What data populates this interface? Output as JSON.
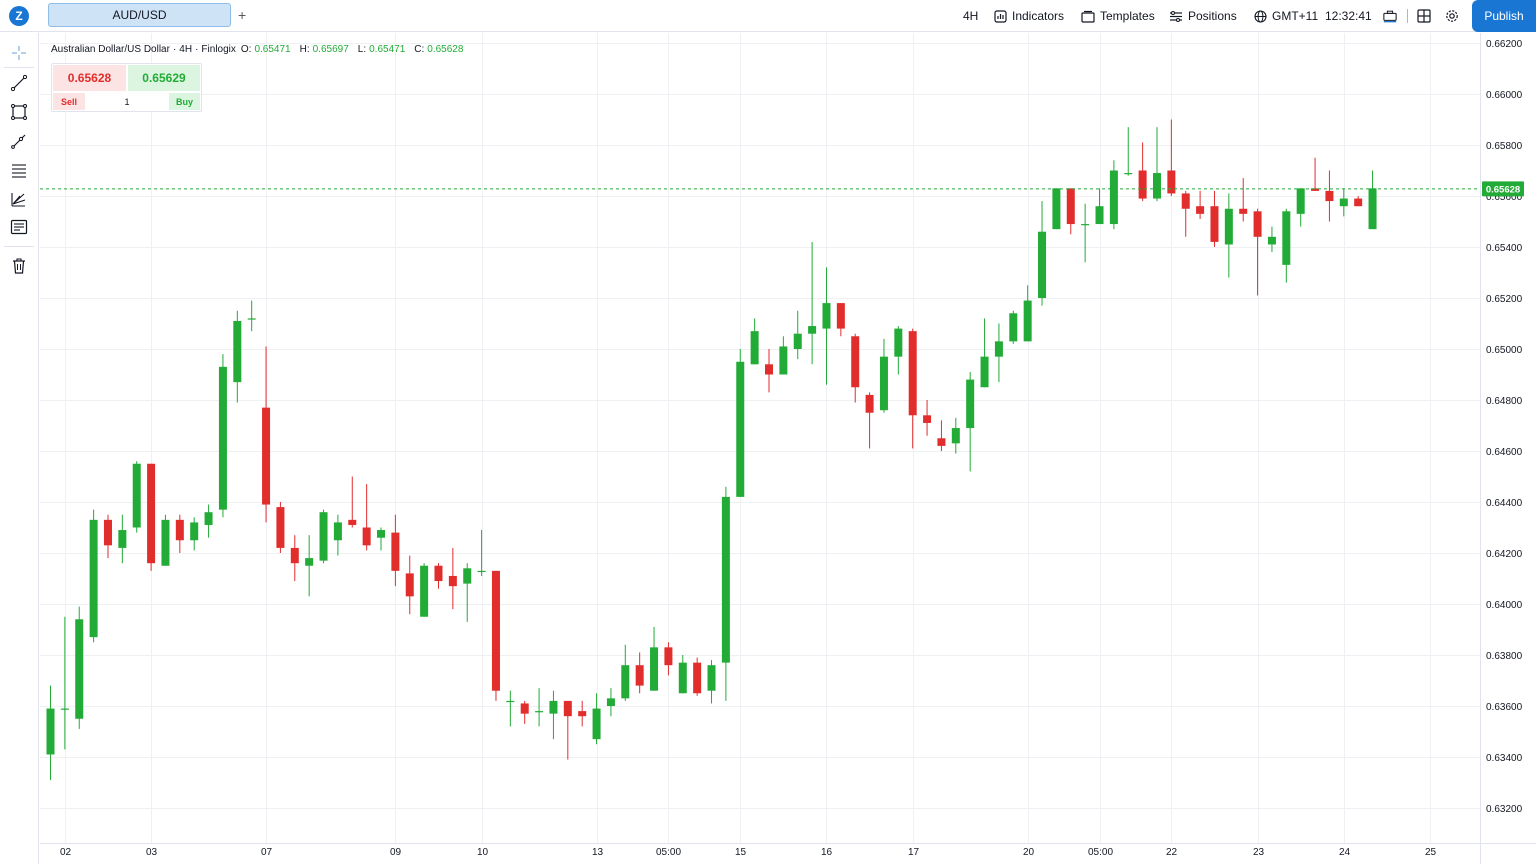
{
  "app": {
    "logo_icon": "z-logo-icon",
    "logo_text": "Z"
  },
  "tabs": [
    {
      "label": "AUD/USD",
      "active": true
    }
  ],
  "add_tab_label": "+",
  "toolbar": {
    "timeframe": "4H",
    "indicators_label": "Indicators",
    "templates_label": "Templates",
    "positions_label": "Positions",
    "timezone": "GMT+11",
    "clock": "12:32:41",
    "publish_label": "Publish"
  },
  "left_tools": [
    "crosshair-icon",
    "trend-line-icon",
    "rectangle-icon",
    "brush-icon",
    "fib-retracement-icon",
    "pitchfork-icon",
    "text-note-icon",
    "trash-icon"
  ],
  "legend": {
    "symbol_name": "Australian Dollar/US Dollar",
    "interval": "4H",
    "source": "Finlogix",
    "o_label": "O:",
    "o_value": "0.65471",
    "h_label": "H:",
    "h_value": "0.65697",
    "l_label": "L:",
    "l_value": "0.65471",
    "c_label": "C:",
    "c_value": "0.65628"
  },
  "trade_panel": {
    "sell_price": "0.65628",
    "buy_price": "0.65629",
    "sell_label": "Sell",
    "buy_label": "Buy",
    "quantity": "1"
  },
  "colors": {
    "up": "#22ab37",
    "down": "#e22d2d",
    "grid": "#eef0f3",
    "accent": "#1976d2"
  },
  "chart_data": {
    "type": "candlestick",
    "symbol": "AUD/USD",
    "interval": "4H",
    "ylim": [
      0.6312,
      0.6625
    ],
    "y_ticks": [
      "0.66200",
      "0.66000",
      "0.65800",
      "0.65600",
      "0.65400",
      "0.65200",
      "0.65000",
      "0.64800",
      "0.64600",
      "0.64400",
      "0.64200",
      "0.64000",
      "0.63800",
      "0.63600",
      "0.63400",
      "0.63200"
    ],
    "x_tick_labels": [
      {
        "label": "02",
        "index": 1
      },
      {
        "label": "03",
        "index": 7
      },
      {
        "label": "07",
        "index": 15
      },
      {
        "label": "09",
        "index": 24
      },
      {
        "label": "10",
        "index": 30
      },
      {
        "label": "13",
        "index": 38
      },
      {
        "label": "05:00",
        "index": 43
      },
      {
        "label": "15",
        "index": 48
      },
      {
        "label": "16",
        "index": 54
      },
      {
        "label": "17",
        "index": 60
      },
      {
        "label": "20",
        "index": 68
      },
      {
        "label": "05:00",
        "index": 73
      },
      {
        "label": "22",
        "index": 78
      },
      {
        "label": "23",
        "index": 84
      },
      {
        "label": "24",
        "index": 90
      },
      {
        "label": "25",
        "index": 96
      }
    ],
    "last_price": "0.65628",
    "last_value": 0.65628,
    "grid": true,
    "candles": [
      {
        "o": 0.6341,
        "h": 0.6368,
        "l": 0.6331,
        "c": 0.6359
      },
      {
        "o": 0.6359,
        "h": 0.6395,
        "l": 0.6343,
        "c": 0.6359
      },
      {
        "o": 0.6355,
        "h": 0.6399,
        "l": 0.6351,
        "c": 0.6394
      },
      {
        "o": 0.6387,
        "h": 0.6437,
        "l": 0.6385,
        "c": 0.6433
      },
      {
        "o": 0.6433,
        "h": 0.6435,
        "l": 0.6418,
        "c": 0.6423
      },
      {
        "o": 0.6422,
        "h": 0.6435,
        "l": 0.6416,
        "c": 0.6429
      },
      {
        "o": 0.643,
        "h": 0.6456,
        "l": 0.6428,
        "c": 0.6455
      },
      {
        "o": 0.6455,
        "h": 0.6455,
        "l": 0.6413,
        "c": 0.6416
      },
      {
        "o": 0.6415,
        "h": 0.6435,
        "l": 0.6415,
        "c": 0.6433
      },
      {
        "o": 0.6433,
        "h": 0.6435,
        "l": 0.642,
        "c": 0.6425
      },
      {
        "o": 0.6425,
        "h": 0.6434,
        "l": 0.6421,
        "c": 0.6432
      },
      {
        "o": 0.6431,
        "h": 0.6439,
        "l": 0.6426,
        "c": 0.6436
      },
      {
        "o": 0.6437,
        "h": 0.6498,
        "l": 0.6434,
        "c": 0.6493
      },
      {
        "o": 0.6487,
        "h": 0.6515,
        "l": 0.6479,
        "c": 0.6511
      },
      {
        "o": 0.6512,
        "h": 0.6519,
        "l": 0.6507,
        "c": 0.6512
      },
      {
        "o": 0.6477,
        "h": 0.6501,
        "l": 0.6432,
        "c": 0.6439
      },
      {
        "o": 0.6438,
        "h": 0.644,
        "l": 0.642,
        "c": 0.6422
      },
      {
        "o": 0.6422,
        "h": 0.6427,
        "l": 0.6409,
        "c": 0.6416
      },
      {
        "o": 0.6415,
        "h": 0.6427,
        "l": 0.6403,
        "c": 0.6418
      },
      {
        "o": 0.6417,
        "h": 0.6437,
        "l": 0.6416,
        "c": 0.6436
      },
      {
        "o": 0.6425,
        "h": 0.6435,
        "l": 0.6419,
        "c": 0.6432
      },
      {
        "o": 0.6433,
        "h": 0.645,
        "l": 0.643,
        "c": 0.6431
      },
      {
        "o": 0.643,
        "h": 0.6447,
        "l": 0.6421,
        "c": 0.6423
      },
      {
        "o": 0.6426,
        "h": 0.643,
        "l": 0.6421,
        "c": 0.6429
      },
      {
        "o": 0.6428,
        "h": 0.6435,
        "l": 0.6407,
        "c": 0.6413
      },
      {
        "o": 0.6412,
        "h": 0.6419,
        "l": 0.6396,
        "c": 0.6403
      },
      {
        "o": 0.6395,
        "h": 0.6416,
        "l": 0.6395,
        "c": 0.6415
      },
      {
        "o": 0.6415,
        "h": 0.6416,
        "l": 0.6406,
        "c": 0.6409
      },
      {
        "o": 0.6411,
        "h": 0.6422,
        "l": 0.6398,
        "c": 0.6407
      },
      {
        "o": 0.6408,
        "h": 0.6416,
        "l": 0.6393,
        "c": 0.6414
      },
      {
        "o": 0.6413,
        "h": 0.6429,
        "l": 0.6411,
        "c": 0.6413
      },
      {
        "o": 0.6413,
        "h": 0.6413,
        "l": 0.6362,
        "c": 0.6366
      },
      {
        "o": 0.6362,
        "h": 0.6366,
        "l": 0.6352,
        "c": 0.6362
      },
      {
        "o": 0.6361,
        "h": 0.6362,
        "l": 0.6353,
        "c": 0.6357
      },
      {
        "o": 0.6358,
        "h": 0.6367,
        "l": 0.6352,
        "c": 0.6358
      },
      {
        "o": 0.6357,
        "h": 0.6366,
        "l": 0.6347,
        "c": 0.6362
      },
      {
        "o": 0.6362,
        "h": 0.6362,
        "l": 0.6339,
        "c": 0.6356
      },
      {
        "o": 0.6358,
        "h": 0.6362,
        "l": 0.6352,
        "c": 0.6356
      },
      {
        "o": 0.6347,
        "h": 0.6365,
        "l": 0.6345,
        "c": 0.6359
      },
      {
        "o": 0.636,
        "h": 0.6367,
        "l": 0.6356,
        "c": 0.6363
      },
      {
        "o": 0.6363,
        "h": 0.6384,
        "l": 0.6362,
        "c": 0.6376
      },
      {
        "o": 0.6376,
        "h": 0.6381,
        "l": 0.6365,
        "c": 0.6368
      },
      {
        "o": 0.6366,
        "h": 0.6391,
        "l": 0.6366,
        "c": 0.6383
      },
      {
        "o": 0.6383,
        "h": 0.6385,
        "l": 0.6372,
        "c": 0.6376
      },
      {
        "o": 0.6365,
        "h": 0.638,
        "l": 0.6365,
        "c": 0.6377
      },
      {
        "o": 0.6377,
        "h": 0.6379,
        "l": 0.6364,
        "c": 0.6365
      },
      {
        "o": 0.6366,
        "h": 0.6378,
        "l": 0.6361,
        "c": 0.6376
      },
      {
        "o": 0.6377,
        "h": 0.6446,
        "l": 0.6362,
        "c": 0.6442
      },
      {
        "o": 0.6442,
        "h": 0.65,
        "l": 0.6442,
        "c": 0.6495
      },
      {
        "o": 0.6494,
        "h": 0.6512,
        "l": 0.6494,
        "c": 0.6507
      },
      {
        "o": 0.6494,
        "h": 0.65,
        "l": 0.6483,
        "c": 0.649
      },
      {
        "o": 0.649,
        "h": 0.6505,
        "l": 0.649,
        "c": 0.6501
      },
      {
        "o": 0.65,
        "h": 0.6515,
        "l": 0.6496,
        "c": 0.6506
      },
      {
        "o": 0.6506,
        "h": 0.6542,
        "l": 0.6494,
        "c": 0.6509
      },
      {
        "o": 0.6508,
        "h": 0.6532,
        "l": 0.6486,
        "c": 0.6518
      },
      {
        "o": 0.6518,
        "h": 0.6518,
        "l": 0.6505,
        "c": 0.6508
      },
      {
        "o": 0.6505,
        "h": 0.6506,
        "l": 0.6479,
        "c": 0.6485
      },
      {
        "o": 0.6482,
        "h": 0.6483,
        "l": 0.6461,
        "c": 0.6475
      },
      {
        "o": 0.6476,
        "h": 0.6504,
        "l": 0.6475,
        "c": 0.6497
      },
      {
        "o": 0.6497,
        "h": 0.6509,
        "l": 0.649,
        "c": 0.6508
      },
      {
        "o": 0.6507,
        "h": 0.6508,
        "l": 0.6461,
        "c": 0.6474
      },
      {
        "o": 0.6474,
        "h": 0.648,
        "l": 0.6466,
        "c": 0.6471
      },
      {
        "o": 0.6465,
        "h": 0.6472,
        "l": 0.646,
        "c": 0.6462
      },
      {
        "o": 0.6463,
        "h": 0.6473,
        "l": 0.6459,
        "c": 0.6469
      },
      {
        "o": 0.6469,
        "h": 0.6491,
        "l": 0.6452,
        "c": 0.6488
      },
      {
        "o": 0.6485,
        "h": 0.6512,
        "l": 0.6485,
        "c": 0.6497
      },
      {
        "o": 0.6497,
        "h": 0.651,
        "l": 0.6487,
        "c": 0.6503
      },
      {
        "o": 0.6503,
        "h": 0.6515,
        "l": 0.6502,
        "c": 0.6514
      },
      {
        "o": 0.6503,
        "h": 0.6525,
        "l": 0.6503,
        "c": 0.6519
      },
      {
        "o": 0.652,
        "h": 0.6558,
        "l": 0.6517,
        "c": 0.6546
      },
      {
        "o": 0.6547,
        "h": 0.6563,
        "l": 0.6547,
        "c": 0.6563
      },
      {
        "o": 0.6563,
        "h": 0.6563,
        "l": 0.6545,
        "c": 0.6549
      },
      {
        "o": 0.6549,
        "h": 0.6557,
        "l": 0.6534,
        "c": 0.6549
      },
      {
        "o": 0.6549,
        "h": 0.6563,
        "l": 0.6549,
        "c": 0.6556
      },
      {
        "o": 0.6549,
        "h": 0.6574,
        "l": 0.6547,
        "c": 0.657
      },
      {
        "o": 0.6569,
        "h": 0.6587,
        "l": 0.6568,
        "c": 0.6569
      },
      {
        "o": 0.657,
        "h": 0.6581,
        "l": 0.6558,
        "c": 0.6559
      },
      {
        "o": 0.6559,
        "h": 0.6587,
        "l": 0.6558,
        "c": 0.6569
      },
      {
        "o": 0.657,
        "h": 0.659,
        "l": 0.656,
        "c": 0.6561
      },
      {
        "o": 0.6561,
        "h": 0.6562,
        "l": 0.6544,
        "c": 0.6555
      },
      {
        "o": 0.6556,
        "h": 0.6562,
        "l": 0.6551,
        "c": 0.6553
      },
      {
        "o": 0.6556,
        "h": 0.6562,
        "l": 0.654,
        "c": 0.6542
      },
      {
        "o": 0.6541,
        "h": 0.6561,
        "l": 0.6528,
        "c": 0.6555
      },
      {
        "o": 0.6555,
        "h": 0.6567,
        "l": 0.655,
        "c": 0.6553
      },
      {
        "o": 0.6554,
        "h": 0.6555,
        "l": 0.6521,
        "c": 0.6544
      },
      {
        "o": 0.6541,
        "h": 0.6548,
        "l": 0.6538,
        "c": 0.6544
      },
      {
        "o": 0.6533,
        "h": 0.6555,
        "l": 0.6526,
        "c": 0.6554
      },
      {
        "o": 0.6553,
        "h": 0.6563,
        "l": 0.6548,
        "c": 0.6563
      },
      {
        "o": 0.6563,
        "h": 0.6575,
        "l": 0.6562,
        "c": 0.6562
      },
      {
        "o": 0.6562,
        "h": 0.657,
        "l": 0.655,
        "c": 0.6558
      },
      {
        "o": 0.6556,
        "h": 0.6563,
        "l": 0.6552,
        "c": 0.6559
      },
      {
        "o": 0.6559,
        "h": 0.656,
        "l": 0.6556,
        "c": 0.6556
      },
      {
        "o": 0.6547,
        "h": 0.657,
        "l": 0.6547,
        "c": 0.6563
      }
    ]
  }
}
